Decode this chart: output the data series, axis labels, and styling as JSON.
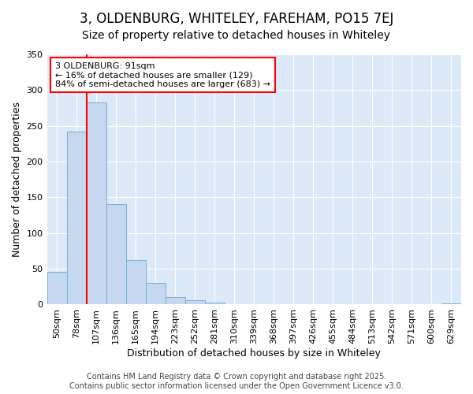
{
  "title": "3, OLDENBURG, WHITELEY, FAREHAM, PO15 7EJ",
  "subtitle": "Size of property relative to detached houses in Whiteley",
  "xlabel": "Distribution of detached houses by size in Whiteley",
  "ylabel": "Number of detached properties",
  "categories": [
    "50sqm",
    "78sqm",
    "107sqm",
    "136sqm",
    "165sqm",
    "194sqm",
    "223sqm",
    "252sqm",
    "281sqm",
    "310sqm",
    "339sqm",
    "368sqm",
    "397sqm",
    "426sqm",
    "455sqm",
    "484sqm",
    "513sqm",
    "542sqm",
    "571sqm",
    "600sqm",
    "629sqm"
  ],
  "values": [
    46,
    242,
    283,
    140,
    62,
    30,
    10,
    6,
    3,
    0,
    0,
    0,
    0,
    0,
    0,
    0,
    0,
    0,
    0,
    0,
    2
  ],
  "bar_color": "#c5d8f0",
  "bar_edge_color": "#7aafd4",
  "vline_x": 1.5,
  "vline_color": "red",
  "annotation_text": "3 OLDENBURG: 91sqm\n← 16% of detached houses are smaller (129)\n84% of semi-detached houses are larger (683) →",
  "box_color": "white",
  "box_edge_color": "red",
  "ylim": [
    0,
    350
  ],
  "yticks": [
    0,
    50,
    100,
    150,
    200,
    250,
    300,
    350
  ],
  "footer": "Contains HM Land Registry data © Crown copyright and database right 2025.\nContains public sector information licensed under the Open Government Licence v3.0.",
  "bg_color": "#ffffff",
  "plot_bg_color": "#dce9f8",
  "grid_color": "#ffffff",
  "title_fontsize": 12,
  "subtitle_fontsize": 10,
  "axis_label_fontsize": 9,
  "tick_fontsize": 8,
  "annotation_fontsize": 8,
  "footer_fontsize": 7
}
